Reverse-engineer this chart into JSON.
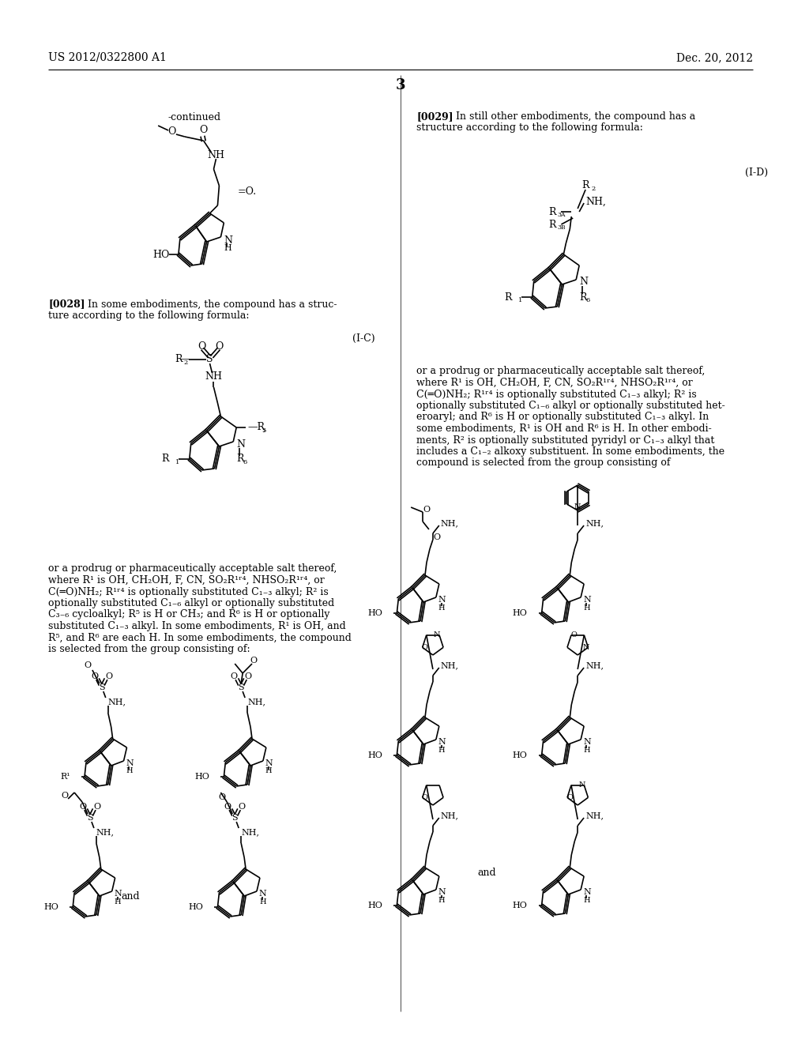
{
  "page_number": "3",
  "header_left": "US 2012/0322800 A1",
  "header_right": "Dec. 20, 2012",
  "background_color": "#ffffff",
  "text_color": "#000000",
  "lw": 1.2
}
